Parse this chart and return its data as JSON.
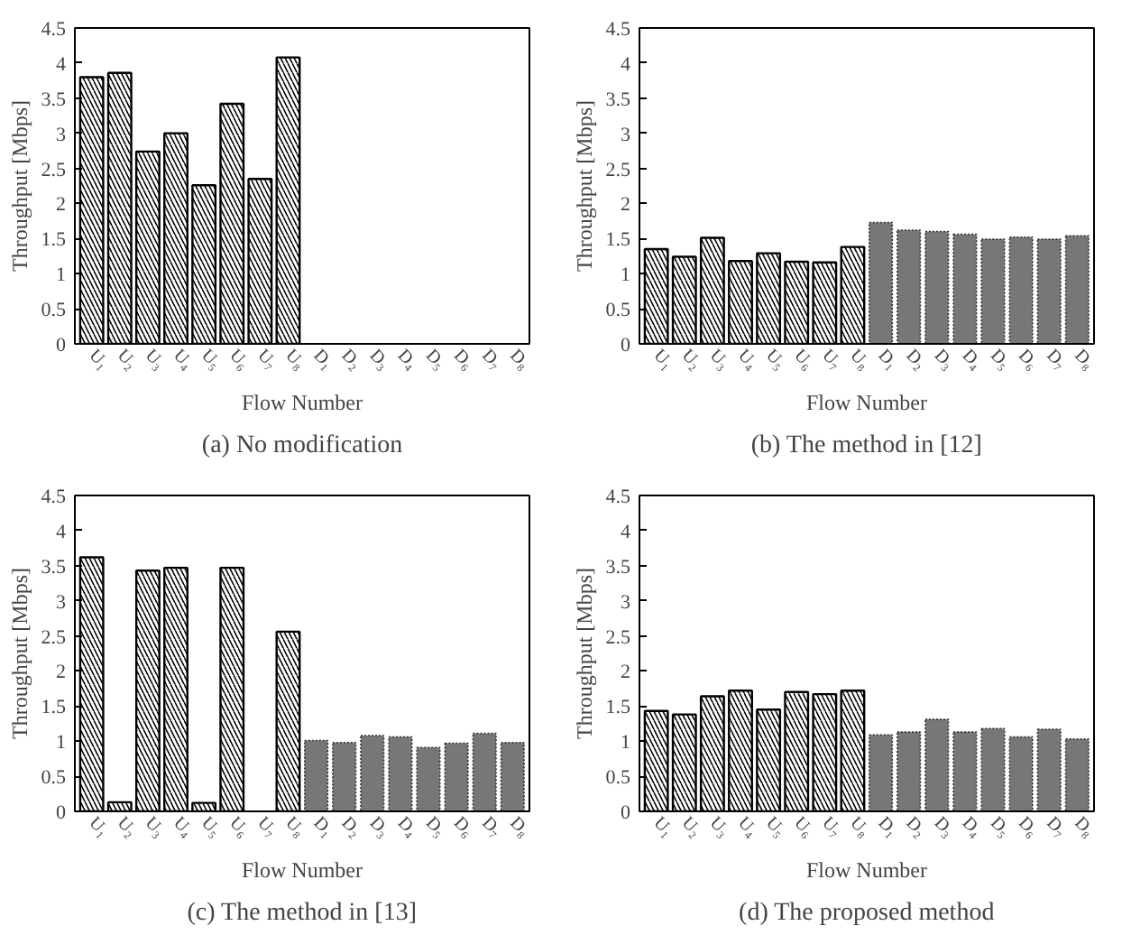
{
  "chart_data": [
    {
      "type": "bar",
      "title": "(a) No modification",
      "xlabel": "Flow Number",
      "ylabel": "Throughput [Mbps]",
      "categories": [
        "U₁",
        "U₂",
        "U₃",
        "U₄",
        "U₅",
        "U₆",
        "U₇",
        "U₈",
        "D₁",
        "D₂",
        "D₃",
        "D₄",
        "D₅",
        "D₆",
        "D₇",
        "D₈"
      ],
      "ylim": [
        0,
        4.5
      ],
      "yticks": [
        0,
        0.5,
        1,
        1.5,
        2,
        2.5,
        3,
        3.5,
        4,
        4.5
      ],
      "series": [
        {
          "color": "#ffffff",
          "values": [
            3.8,
            3.86,
            2.74,
            3.0,
            2.26,
            3.42,
            2.35,
            4.08,
            null,
            null,
            null,
            null,
            null,
            null,
            null,
            null
          ]
        },
        {
          "color": "#777777",
          "values": [
            null,
            null,
            null,
            null,
            null,
            null,
            null,
            null,
            null,
            null,
            null,
            null,
            null,
            null,
            null,
            null
          ]
        }
      ]
    },
    {
      "type": "bar",
      "title": "(b) The method in [12]",
      "xlabel": "Flow Number",
      "ylabel": "Throughput [Mbps]",
      "categories": [
        "U₁",
        "U₂",
        "U₃",
        "U₄",
        "U₅",
        "U₆",
        "U₇",
        "U₈",
        "D₁",
        "D₂",
        "D₃",
        "D₄",
        "D₅",
        "D₆",
        "D₇",
        "D₈"
      ],
      "ylim": [
        0,
        4.5
      ],
      "yticks": [
        0,
        0.5,
        1,
        1.5,
        2,
        2.5,
        3,
        3.5,
        4,
        4.5
      ],
      "series": [
        {
          "color": "#ffffff",
          "values": [
            1.35,
            1.24,
            1.51,
            1.18,
            1.29,
            1.17,
            1.16,
            1.38,
            null,
            null,
            null,
            null,
            null,
            null,
            null,
            null
          ]
        },
        {
          "color": "#777777",
          "values": [
            null,
            null,
            null,
            null,
            null,
            null,
            null,
            null,
            1.73,
            1.62,
            1.6,
            1.56,
            1.49,
            1.52,
            1.49,
            1.54
          ]
        }
      ]
    },
    {
      "type": "bar",
      "title": "(c) The method in [13]",
      "xlabel": "Flow Number",
      "ylabel": "Throughput [Mbps]",
      "categories": [
        "U₁",
        "U₂",
        "U₃",
        "U₄",
        "U₅",
        "U₆",
        "U₇",
        "U₈",
        "D₁",
        "D₂",
        "D₃",
        "D₄",
        "D₅",
        "D₆",
        "D₇",
        "D₈"
      ],
      "ylim": [
        0,
        4.5
      ],
      "yticks": [
        0,
        0.5,
        1,
        1.5,
        2,
        2.5,
        3,
        3.5,
        4,
        4.5
      ],
      "series": [
        {
          "color": "#ffffff",
          "values": [
            3.62,
            0.13,
            3.43,
            3.47,
            0.12,
            3.47,
            null,
            2.56,
            null,
            null,
            null,
            null,
            null,
            null,
            null,
            null
          ]
        },
        {
          "color": "#777777",
          "values": [
            null,
            null,
            null,
            null,
            null,
            null,
            null,
            null,
            1.01,
            0.98,
            1.08,
            1.06,
            0.91,
            0.97,
            1.11,
            0.98
          ]
        }
      ]
    },
    {
      "type": "bar",
      "title": "(d) The proposed method",
      "xlabel": "Flow Number",
      "ylabel": "Throughput [Mbps]",
      "categories": [
        "U₁",
        "U₂",
        "U₃",
        "U₄",
        "U₅",
        "U₆",
        "U₇",
        "U₈",
        "D₁",
        "D₂",
        "D₃",
        "D₄",
        "D₅",
        "D₆",
        "D₇",
        "D₈"
      ],
      "ylim": [
        0,
        4.5
      ],
      "yticks": [
        0,
        0.5,
        1,
        1.5,
        2,
        2.5,
        3,
        3.5,
        4,
        4.5
      ],
      "series": [
        {
          "color": "#ffffff",
          "values": [
            1.43,
            1.38,
            1.64,
            1.72,
            1.45,
            1.7,
            1.67,
            1.72,
            null,
            null,
            null,
            null,
            null,
            null,
            null,
            null
          ]
        },
        {
          "color": "#777777",
          "values": [
            null,
            null,
            null,
            null,
            null,
            null,
            null,
            null,
            1.09,
            1.13,
            1.31,
            1.13,
            1.18,
            1.06,
            1.17,
            1.03
          ]
        }
      ]
    }
  ]
}
